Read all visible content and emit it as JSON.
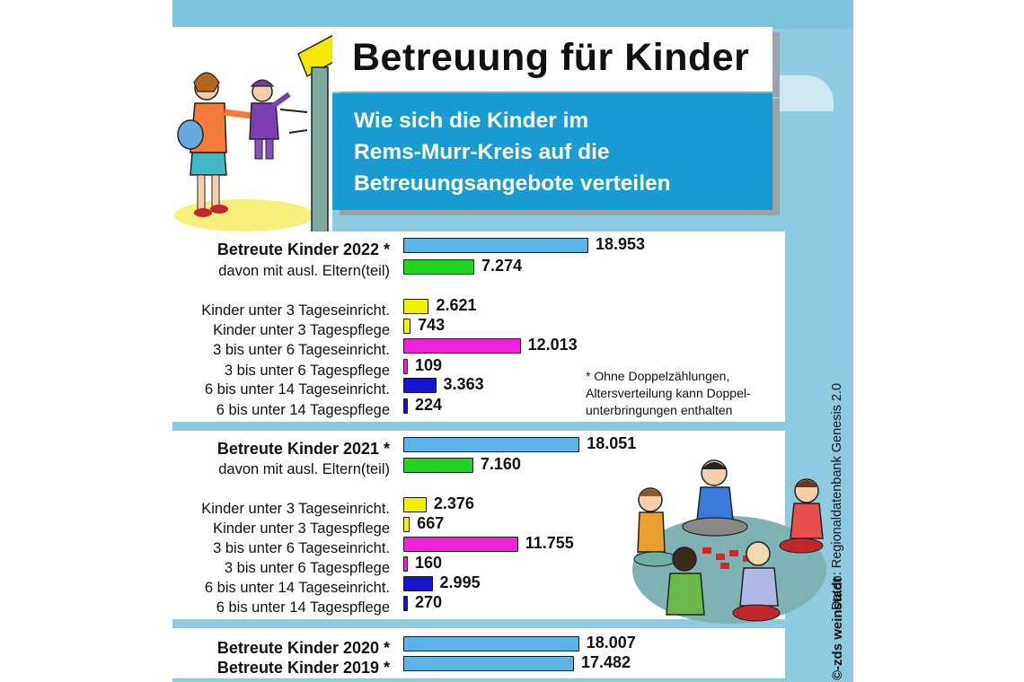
{
  "header": {
    "title": "Betreuung für Kinder",
    "subtitle_lines": [
      "Wie sich die Kinder im",
      "Rems-Murr-Kreis auf die",
      "Betreuungsangebote verteilen"
    ]
  },
  "note_lines": [
    "* Ohne Doppelzählungen,",
    "Altersverteilung kann Doppel-",
    "unterbringungen enthalten"
  ],
  "source": "Daten: Regionaldatenbank Genesis 2.0",
  "copyright": "©-zds weinstadt",
  "colors": {
    "total": "#5ab4e6",
    "foreign": "#22d422",
    "under3": "#f4f000",
    "age3to6": "#ee22d8",
    "age6to14": "#1414cc"
  },
  "chart_data": {
    "type": "bar",
    "orientation": "horizontal",
    "value_max": 18953,
    "groups": [
      {
        "rows": [
          {
            "label": "Betreute Kinder 2022 *",
            "value": 18953,
            "value_label": "18.953",
            "color": "#5ab4e6",
            "bold": true
          },
          {
            "label": "davon mit ausl. Eltern(teil)",
            "value": 7274,
            "value_label": "7.274",
            "color": "#22d422",
            "bold": false
          },
          {
            "label": "Kinder unter 3 Tageseinricht.",
            "value": 2621,
            "value_label": "2.621",
            "color": "#f4f000",
            "bold": false
          },
          {
            "label": "Kinder unter 3 Tagespflege",
            "value": 743,
            "value_label": "743",
            "color": "#f4f000",
            "bold": false
          },
          {
            "label": "3 bis unter 6 Tageseinricht.",
            "value": 12013,
            "value_label": "12.013",
            "color": "#ee22d8",
            "bold": false
          },
          {
            "label": "3 bis unter 6 Tagespflege",
            "value": 109,
            "value_label": "109",
            "color": "#ee22d8",
            "bold": false
          },
          {
            "label": "6 bis unter 14 Tageseinricht.",
            "value": 3363,
            "value_label": "3.363",
            "color": "#1414cc",
            "bold": false
          },
          {
            "label": "6 bis unter 14 Tagespflege",
            "value": 224,
            "value_label": "224",
            "color": "#1414cc",
            "bold": false
          }
        ]
      },
      {
        "rows": [
          {
            "label": "Betreute Kinder 2021 *",
            "value": 18051,
            "value_label": "18.051",
            "color": "#5ab4e6",
            "bold": true
          },
          {
            "label": "davon mit ausl. Eltern(teil)",
            "value": 7160,
            "value_label": "7.160",
            "color": "#22d422",
            "bold": false
          },
          {
            "label": "Kinder unter 3 Tageseinricht.",
            "value": 2376,
            "value_label": "2.376",
            "color": "#f4f000",
            "bold": false
          },
          {
            "label": "Kinder unter 3 Tagespflege",
            "value": 667,
            "value_label": "667",
            "color": "#f4f000",
            "bold": false
          },
          {
            "label": "3 bis unter 6 Tageseinricht.",
            "value": 11755,
            "value_label": "11.755",
            "color": "#ee22d8",
            "bold": false
          },
          {
            "label": "3 bis unter 6 Tagespflege",
            "value": 160,
            "value_label": "160",
            "color": "#ee22d8",
            "bold": false
          },
          {
            "label": "6 bis unter 14 Tageseinricht.",
            "value": 2995,
            "value_label": "2.995",
            "color": "#1414cc",
            "bold": false
          },
          {
            "label": "6 bis unter 14 Tagespflege",
            "value": 270,
            "value_label": "270",
            "color": "#1414cc",
            "bold": false
          }
        ]
      },
      {
        "rows": [
          {
            "label": "Betreute Kinder 2020 *",
            "value": 18007,
            "value_label": "18.007",
            "color": "#5ab4e6",
            "bold": true
          },
          {
            "label": "Betreute Kinder 2019 *",
            "value": 17482,
            "value_label": "17.482",
            "color": "#5ab4e6",
            "bold": true
          }
        ]
      }
    ]
  }
}
